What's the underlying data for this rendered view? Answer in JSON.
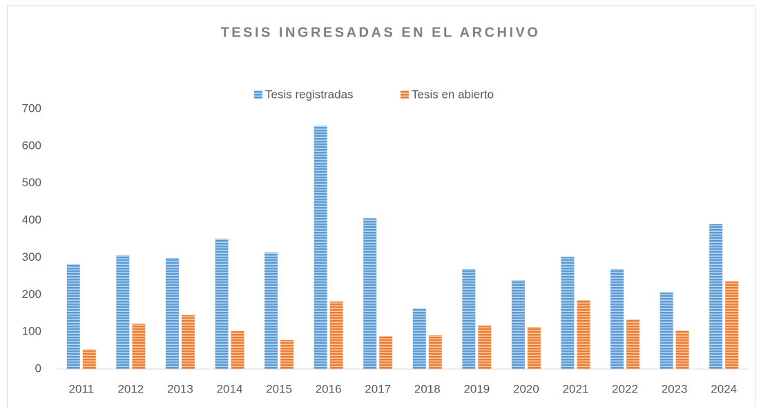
{
  "chart_data": {
    "type": "bar",
    "title": "TESIS INGRESADAS EN EL ARCHIVO",
    "categories": [
      "2011",
      "2012",
      "2013",
      "2014",
      "2015",
      "2016",
      "2017",
      "2018",
      "2019",
      "2020",
      "2021",
      "2022",
      "2023",
      "2024"
    ],
    "series": [
      {
        "name": "Tesis registradas",
        "color": "#5b9bd5",
        "values": [
          283,
          306,
          299,
          351,
          314,
          655,
          406,
          163,
          269,
          239,
          302,
          269,
          206,
          390
        ]
      },
      {
        "name": "Tesis en abierto",
        "color": "#ed7d31",
        "values": [
          53,
          122,
          145,
          102,
          78,
          182,
          89,
          91,
          117,
          113,
          186,
          134,
          104,
          236
        ]
      }
    ],
    "ylim": [
      0,
      700
    ],
    "yticks": [
      0,
      100,
      200,
      300,
      400,
      500,
      600,
      700
    ],
    "grid": false,
    "legend": "top"
  }
}
